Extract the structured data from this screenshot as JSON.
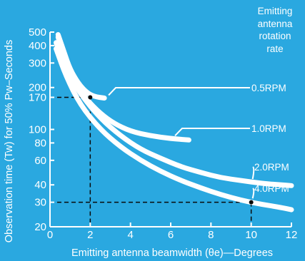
{
  "chart_data": {
    "type": "line",
    "xlabel": "Emitting antenna beamwidth (θe)—Degrees",
    "ylabel": "Observation time (Tw) for 50% Pw–Seconds",
    "xlim": [
      0,
      12
    ],
    "ylim": [
      20,
      500
    ],
    "yscale": "log",
    "x_ticks": [
      0,
      2,
      4,
      6,
      8,
      10,
      12
    ],
    "y_ticks": [
      20,
      30,
      40,
      60,
      80,
      100,
      170,
      200,
      300,
      400,
      500
    ],
    "legend_title": [
      "Emitting",
      "antenna",
      "rotation",
      "rate"
    ],
    "series": [
      {
        "name": "0.5RPM",
        "x": [
          0.4,
          0.7,
          1.0,
          1.4,
          1.8,
          2.2,
          2.7
        ],
        "y": [
          480,
          360,
          270,
          215,
          185,
          172,
          168
        ]
      },
      {
        "name": "1.0RPM",
        "x": [
          0.4,
          0.8,
          1.2,
          1.8,
          2.5,
          3.2,
          4.0,
          5.0,
          6.0,
          6.9
        ],
        "y": [
          460,
          310,
          225,
          165,
          130,
          110,
          97,
          90,
          86,
          84
        ]
      },
      {
        "name": "2.0RPM",
        "x": [
          0.3,
          0.8,
          1.5,
          2.5,
          3.5,
          4.5,
          5.5,
          6.5,
          7.5,
          8.5,
          9.5,
          10.5,
          11.5,
          12
        ],
        "y": [
          420,
          270,
          180,
          120,
          90,
          72,
          62,
          54,
          49,
          45,
          43,
          41,
          40,
          39.5
        ]
      },
      {
        "name": "4.0RPM",
        "x": [
          0.3,
          0.8,
          1.5,
          2.5,
          3.5,
          4.5,
          5.5,
          6.5,
          7.5,
          8.5,
          9.5,
          10.5,
          11.5,
          12
        ],
        "y": [
          380,
          240,
          150,
          100,
          75,
          60,
          50,
          43,
          38,
          34,
          31,
          29,
          27.5,
          26.5
        ]
      }
    ],
    "annotations": [
      {
        "x": 2,
        "y": 170
      },
      {
        "x": 10,
        "y": 30
      }
    ],
    "colors": {
      "background": "#2aa8e0",
      "foreground": "#ffffff",
      "reference": "#0a0a0a"
    }
  }
}
